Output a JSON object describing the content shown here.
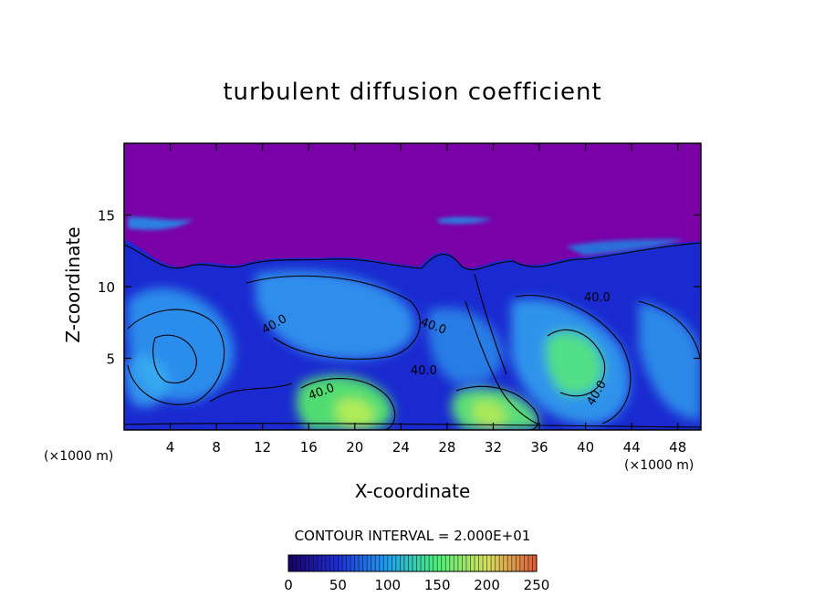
{
  "chart_data": {
    "type": "heatmap",
    "title": "turbulent diffusion coefficient",
    "xlabel": "X-coordinate",
    "ylabel": "Z-coordinate",
    "x_unit_left": "(×1000 m)",
    "x_unit_right": "(×1000 m)",
    "xlim": [
      0,
      50
    ],
    "ylim": [
      0,
      20
    ],
    "x_ticks": [
      4,
      8,
      12,
      16,
      20,
      24,
      28,
      32,
      36,
      40,
      44,
      48
    ],
    "y_ticks": [
      5,
      10,
      15
    ],
    "contour_interval_label": "CONTOUR INTERVAL = 2.000E+01",
    "contour_labels": [
      "40.0",
      "40.0",
      "40.0",
      "40.0",
      "40.0",
      "40.0"
    ],
    "colorbar": {
      "min": 0,
      "max": 250,
      "ticks": [
        0,
        50,
        100,
        150,
        200,
        250
      ],
      "colors": [
        "#1a0066",
        "#1e2fd6",
        "#1fa0f0",
        "#4ef07a",
        "#d8e060",
        "#e05a38"
      ]
    },
    "colors": {
      "background_field": "#7a00a8",
      "low": "#1a26c8",
      "mid": "#28a8f0",
      "high": "#58f068",
      "peak": "#c8f050"
    }
  }
}
